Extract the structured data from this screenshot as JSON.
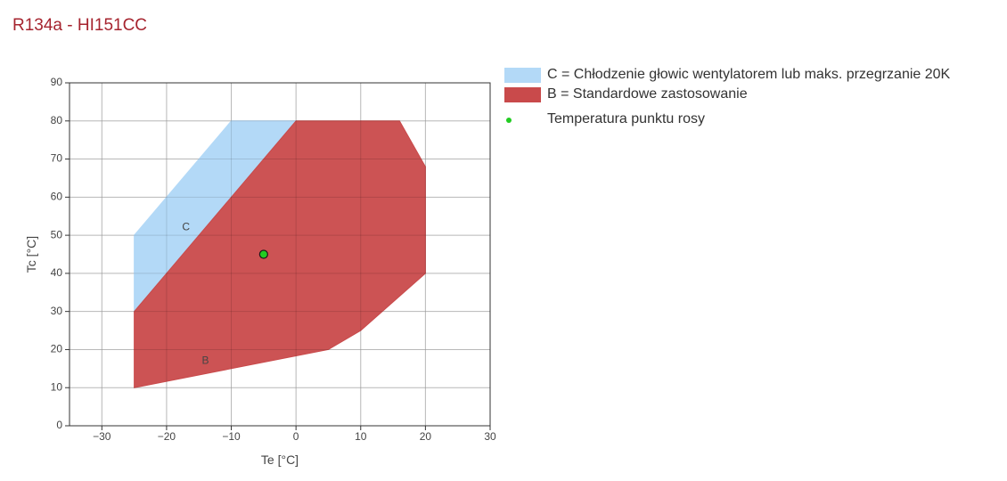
{
  "title": "R134a - HI151CC",
  "colors": {
    "title": "#a6242f",
    "region_c": "#b3d9f7",
    "region_b": "#c94a4b",
    "dew_point": "#22cc22"
  },
  "legend": [
    {
      "label": "C = Chłodzenie głowic wentylatorem lub maks. przegrzanie 20K",
      "swatch": "region_c"
    },
    {
      "label": "B = Standardowe zastosowanie",
      "swatch": "region_b"
    },
    {
      "label": "Temperatura punktu rosy",
      "swatch": "dew_point"
    }
  ],
  "chart_data": {
    "type": "area",
    "xlabel": "Te [°C]",
    "ylabel": "Tc [°C]",
    "xlim": [
      -35,
      30
    ],
    "ylim": [
      0,
      90
    ],
    "x_ticks": [
      -30,
      -20,
      -10,
      0,
      10,
      20,
      30
    ],
    "y_ticks": [
      0,
      10,
      20,
      30,
      40,
      50,
      60,
      70,
      80,
      90
    ],
    "x_tick_labels": [
      "−30",
      "−20",
      "−10",
      "0",
      "10",
      "20",
      "30"
    ],
    "y_tick_labels": [
      "0",
      "10",
      "20",
      "30",
      "40",
      "50",
      "60",
      "70",
      "80",
      "90"
    ],
    "grid": true,
    "legend_position": "right",
    "series": [
      {
        "name": "C = Chłodzenie głowic wentylatorem lub maks. przegrzanie 20K",
        "label": "C",
        "label_point": [
          -17,
          52
        ],
        "polygon": [
          [
            -25,
            50
          ],
          [
            -10,
            80
          ],
          [
            0,
            80
          ],
          [
            -25,
            30
          ]
        ]
      },
      {
        "name": "B = Standardowe zastosowanie",
        "label": "B",
        "label_point": [
          -14,
          17
        ],
        "polygon": [
          [
            -25,
            10
          ],
          [
            -25,
            30
          ],
          [
            0,
            80
          ],
          [
            16,
            80
          ],
          [
            20,
            68
          ],
          [
            20,
            40
          ],
          [
            10,
            25
          ],
          [
            5,
            20
          ]
        ]
      }
    ],
    "points": [
      {
        "name": "Temperatura punktu rosy",
        "x": -5,
        "y": 45
      }
    ]
  }
}
